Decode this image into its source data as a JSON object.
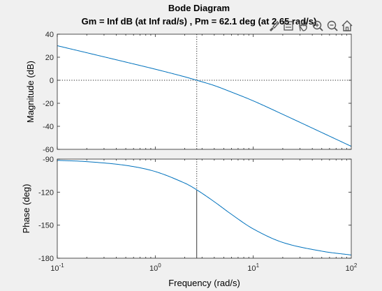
{
  "figure": {
    "title_line1": "Bode Diagram",
    "title_line2": "Gm = Inf dB (at Inf rad/s) ,  Pm = 62.1 deg (at 2.65 rad/s)"
  },
  "toolbar": {
    "icons": [
      "brush-icon",
      "data-tips-icon",
      "pan-hand-icon",
      "zoom-in-icon",
      "zoom-out-icon",
      "home-icon"
    ]
  },
  "colors": {
    "curve": "#0072bd",
    "axes": "#262626",
    "background": "#f0f0f0",
    "plot_bg": "#ffffff"
  },
  "chart_data": [
    {
      "type": "line",
      "ylabel": "Magnitude (dB)",
      "xscale": "log",
      "xlim": [
        0.1,
        100
      ],
      "ylim": [
        -60,
        40
      ],
      "yticks": [
        "-60",
        "-40",
        "-20",
        "0",
        "20",
        "40"
      ],
      "ytick_values": [
        -60,
        -40,
        -20,
        0,
        20,
        40
      ],
      "series": [
        {
          "x": [
            0.1,
            0.2,
            0.5,
            1,
            2,
            2.65,
            4,
            6,
            10,
            20,
            50,
            100
          ],
          "values": [
            30,
            23.9,
            15.8,
            9.6,
            3.0,
            0.0,
            -4.6,
            -10.3,
            -17.9,
            -29.6,
            -45.4,
            -57.4
          ]
        }
      ],
      "reference_lines": [
        {
          "orientation": "horizontal",
          "y": 0,
          "style": "dotted"
        },
        {
          "orientation": "vertical",
          "x": 2.65,
          "style": "dotted"
        }
      ]
    },
    {
      "type": "line",
      "ylabel": "Phase (deg)",
      "xlabel": "Frequency  (rad/s)",
      "xscale": "log",
      "xlim": [
        0.1,
        100
      ],
      "ylim": [
        -180,
        -90
      ],
      "yticks": [
        "-180",
        "-150",
        "-120",
        "-90"
      ],
      "ytick_values": [
        -180,
        -150,
        -120,
        -90
      ],
      "xticks": [
        {
          "value": 0.1,
          "base": "10",
          "exp": "-1"
        },
        {
          "value": 1,
          "base": "10",
          "exp": "0"
        },
        {
          "value": 10,
          "base": "10",
          "exp": "1"
        },
        {
          "value": 100,
          "base": "10",
          "exp": "2"
        }
      ],
      "series": [
        {
          "x": [
            0.1,
            0.2,
            0.5,
            1,
            2,
            2.65,
            4,
            6,
            10,
            20,
            50,
            100
          ],
          "values": [
            -91.1,
            -92.3,
            -95.7,
            -101.3,
            -111.8,
            -117.9,
            -128.7,
            -140.2,
            -153.4,
            -165.7,
            -173.6,
            -177.1
          ]
        }
      ],
      "reference_lines": [
        {
          "orientation": "vertical",
          "x": 2.65,
          "style": "dotted",
          "y_from": -90,
          "y_to": -117.9
        },
        {
          "orientation": "vertical",
          "x": 2.65,
          "style": "solid",
          "y_from": -117.9,
          "y_to": -180
        }
      ]
    }
  ]
}
